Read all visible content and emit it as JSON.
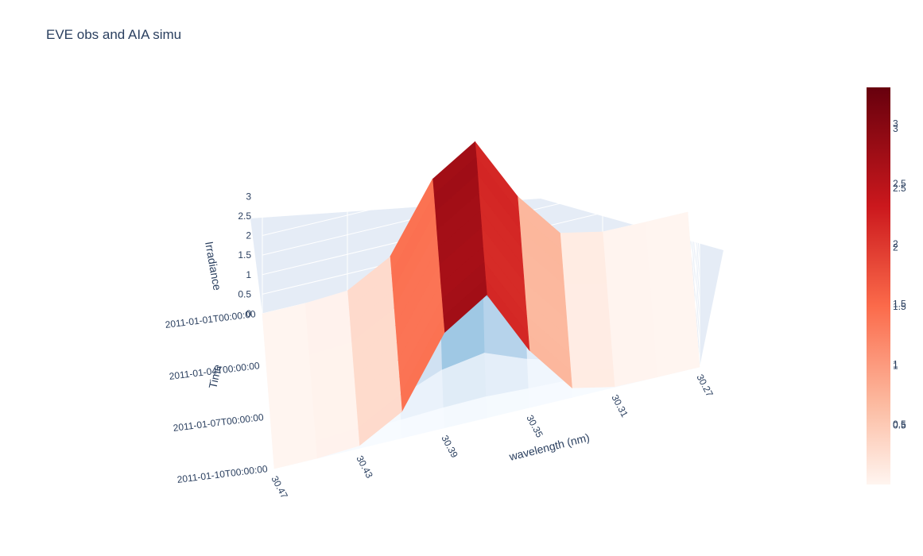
{
  "chart_data": {
    "type": "surface",
    "title": "EVE obs and AIA simu",
    "xlabel": "wavelength (nm)",
    "ylabel": "Time",
    "zlabel": "Irradiance",
    "x_ticks": [
      "30.27",
      "30.31",
      "30.35",
      "30.39",
      "30.43",
      "30.47"
    ],
    "y_ticks": [
      "2011-01-01T00:00:00",
      "2011-01-04T00:00:00",
      "2011-01-07T00:00:00",
      "2011-01-10T00:00:00"
    ],
    "z_ticks": [
      "0",
      "0.5",
      "1",
      "1.5",
      "2",
      "2.5",
      "3"
    ],
    "x": [
      30.27,
      30.29,
      30.31,
      30.33,
      30.35,
      30.37,
      30.39,
      30.41,
      30.43,
      30.45,
      30.47
    ],
    "time": [
      "2011-01-01",
      "2011-01-02",
      "2011-01-03",
      "2011-01-04",
      "2011-01-05",
      "2011-01-06",
      "2011-01-07",
      "2011-01-08",
      "2011-01-09",
      "2011-01-10"
    ],
    "series": [
      {
        "colorscale": "Reds",
        "z_peak_by_time": [
          3.2,
          3.25,
          3.25,
          3.2,
          3.2,
          3.2,
          3.15,
          3.2,
          3.2,
          3.25
        ]
      },
      {
        "colorscale": "Blues",
        "z_peak_by_time": [
          2.6,
          2.4,
          2.4,
          2.2,
          2.0,
          2.0,
          1.9,
          0.8,
          0.1,
          0.0
        ]
      }
    ],
    "colorbars": [
      {
        "colorscale": "Reds",
        "tick_labels": [
          "3",
          "2.5",
          "2",
          "1.5",
          "1",
          "0.5"
        ]
      },
      {
        "colorscale": "Reds",
        "tick_labels": [
          "3",
          "2.5",
          "2",
          "1.5",
          "1",
          "0.5"
        ]
      }
    ],
    "colors": {
      "scene_bg": "#e5ecf6",
      "grid": "#ffffff",
      "text": "#2a3f5f"
    }
  }
}
